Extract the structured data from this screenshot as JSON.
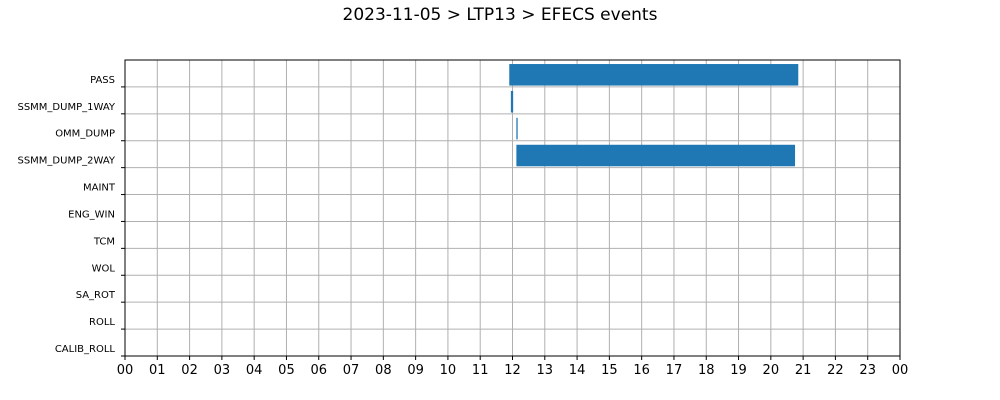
{
  "chart_data": {
    "type": "bar",
    "orientation": "horizontal-timeline",
    "title": "2023-11-05 > LTP13 > EFECS events",
    "xlabel": "",
    "ylabel": "",
    "xlim": [
      0,
      24
    ],
    "x_tick_labels": [
      "00",
      "01",
      "02",
      "03",
      "04",
      "05",
      "06",
      "07",
      "08",
      "09",
      "10",
      "11",
      "12",
      "13",
      "14",
      "15",
      "16",
      "17",
      "18",
      "19",
      "20",
      "21",
      "22",
      "23",
      "00"
    ],
    "categories": [
      "PASS",
      "SSMM_DUMP_1WAY",
      "OMM_DUMP",
      "SSMM_DUMP_2WAY",
      "MAINT",
      "ENG_WIN",
      "TCM",
      "WOL",
      "SA_ROT",
      "ROLL",
      "CALIB_ROLL"
    ],
    "grid": true,
    "bar_color": "#1f77b4",
    "series": [
      {
        "events": [
          {
            "category": "PASS",
            "start": 11.9,
            "end": 20.85
          },
          {
            "category": "SSMM_DUMP_1WAY",
            "start": 11.95,
            "end": 12.02
          },
          {
            "category": "OMM_DUMP",
            "start": 12.12,
            "end": 12.16
          },
          {
            "category": "SSMM_DUMP_2WAY",
            "start": 12.12,
            "end": 20.75
          }
        ]
      }
    ]
  }
}
